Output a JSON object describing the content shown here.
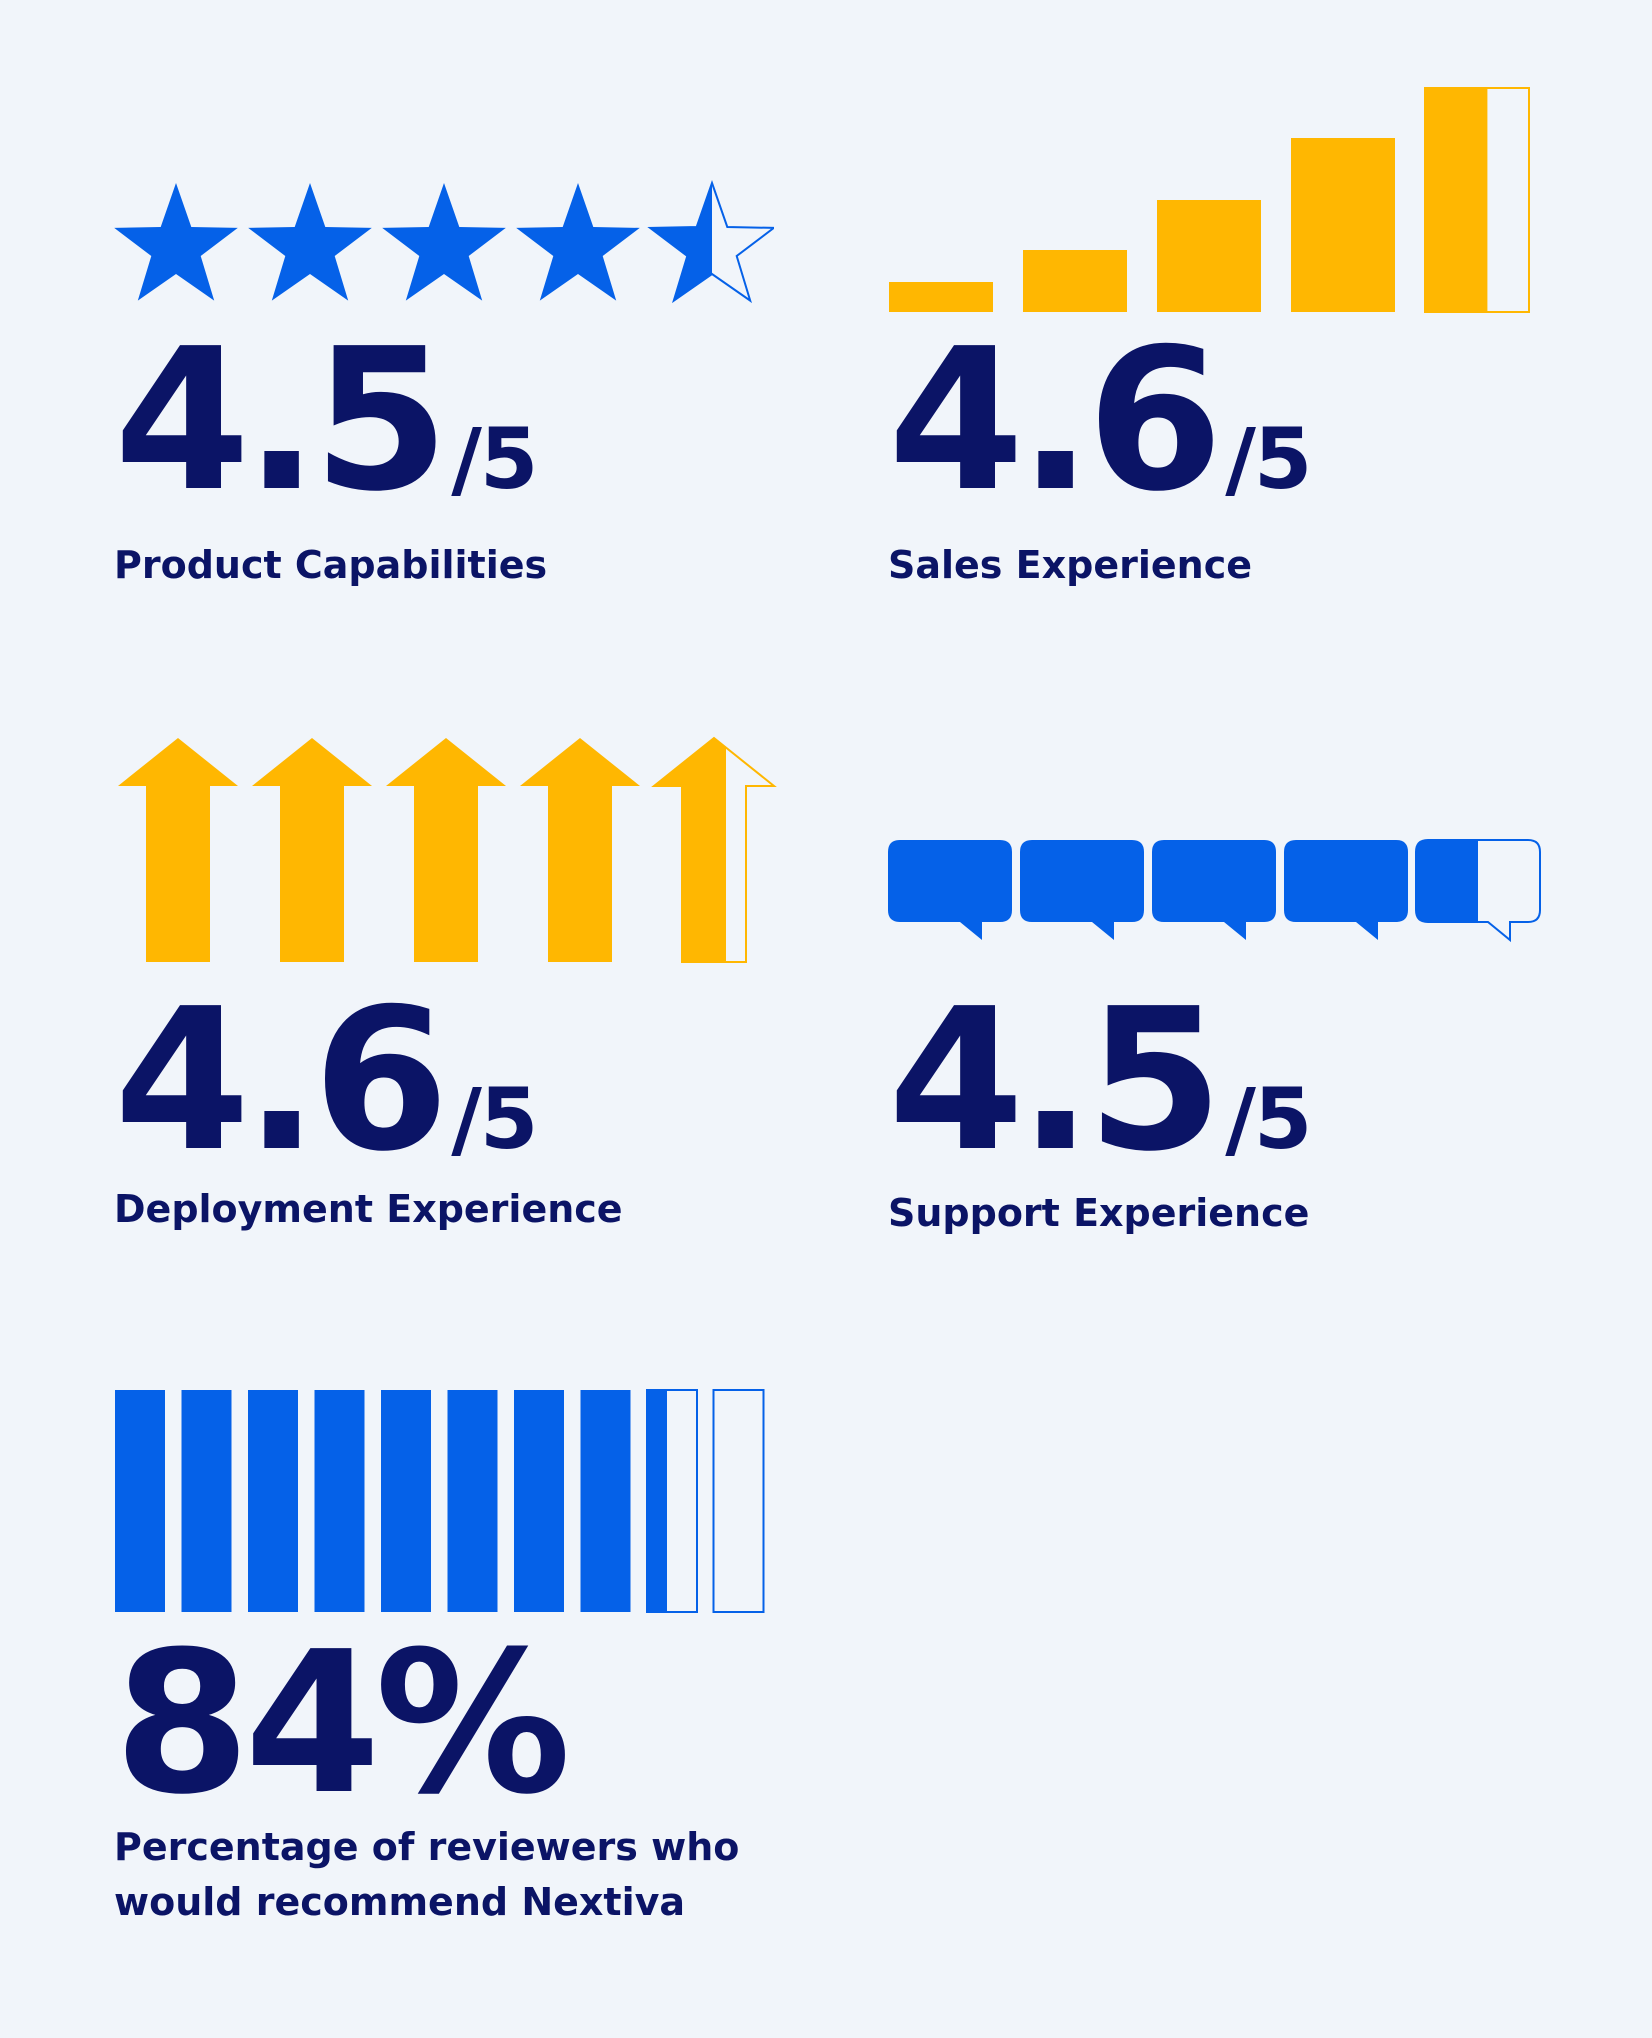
{
  "colors": {
    "blue": "#0561e8",
    "yellow": "#ffb701",
    "navy": "#0b1466",
    "background": "#f1f5fa"
  },
  "metrics": [
    {
      "icon": "star-icon",
      "color": "blue",
      "rating": 4.5,
      "max": 5,
      "score": "4.5",
      "suffix": "/5",
      "label": "Product Capabilities"
    },
    {
      "icon": "bar-icon",
      "color": "yellow",
      "rating": 4.6,
      "max": 5,
      "score": "4.6",
      "suffix": "/5",
      "label": "Sales Experience"
    },
    {
      "icon": "arrow-up-icon",
      "color": "yellow",
      "rating": 4.6,
      "max": 5,
      "score": "4.6",
      "suffix": "/5",
      "label": "Deployment Experience"
    },
    {
      "icon": "speech-bubble-icon",
      "color": "blue",
      "rating": 4.5,
      "max": 5,
      "score": "4.5",
      "suffix": "/5",
      "label": "Support Experience"
    }
  ],
  "recommend": {
    "icon": "bar-icon",
    "color": "blue",
    "percent": 84,
    "score": "84%",
    "label_line1": "Percentage of reviewers who",
    "label_line2": "would recommend Nextiva"
  }
}
